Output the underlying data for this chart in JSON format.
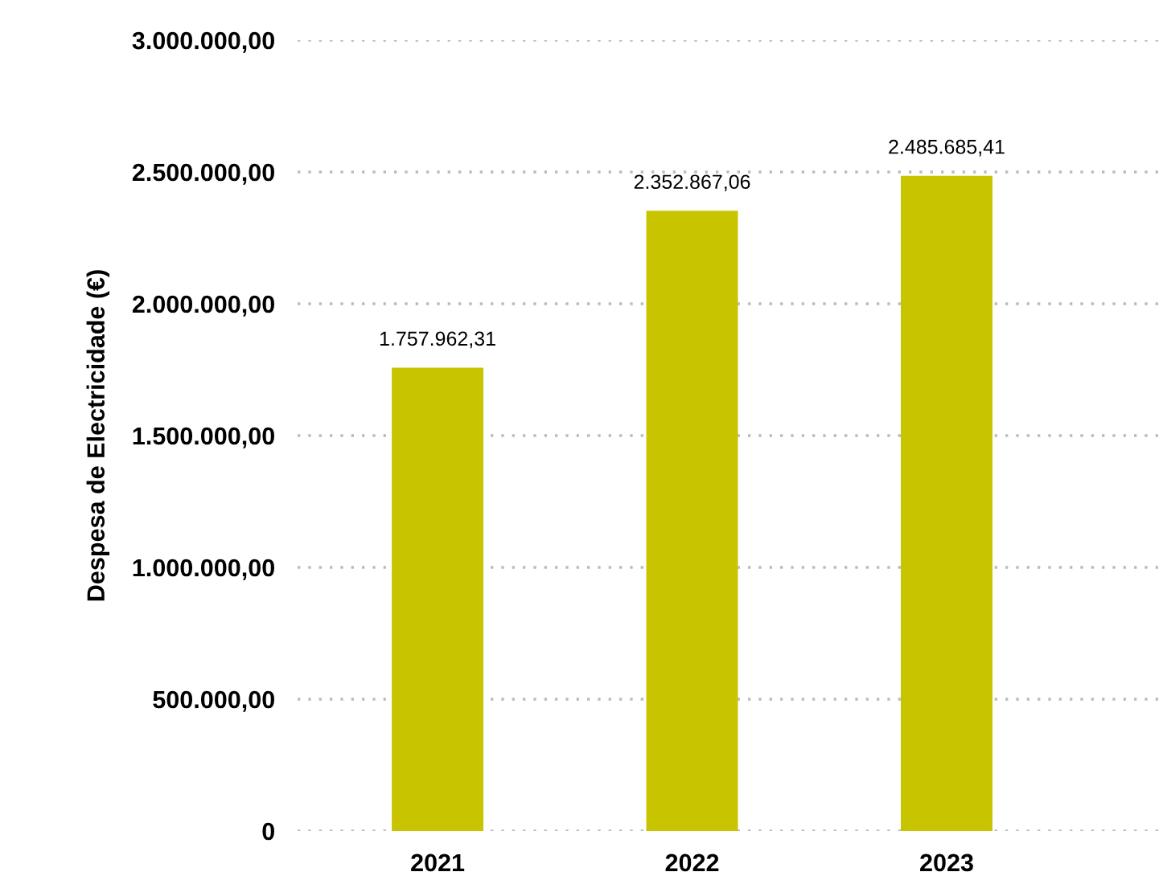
{
  "chart_data": {
    "type": "bar",
    "ylabel": "Despesa de Electricidade (€)",
    "categories": [
      "2021",
      "2022",
      "2023"
    ],
    "values": [
      1757962.31,
      2352867.06,
      2485685.41
    ],
    "value_labels": [
      "1.757.962,31",
      "2.352.867,06",
      "2.485.685,41"
    ],
    "color": "#c8c400",
    "ylim": [
      0,
      3000000
    ],
    "yticks": [
      0,
      {
        "value": 500000,
        "label": "500.000,00"
      },
      {
        "value": 1000000,
        "label": "1.000.000,00"
      },
      {
        "value": 1500000,
        "label": "1.500.000,00"
      },
      {
        "value": 2000000,
        "label": "2.000.000,00"
      },
      {
        "value": 2500000,
        "label": "2.500.000,00"
      },
      {
        "value": 3000000,
        "label": "3.000.000,00"
      }
    ],
    "grid": "y",
    "line_style": "dotted"
  }
}
